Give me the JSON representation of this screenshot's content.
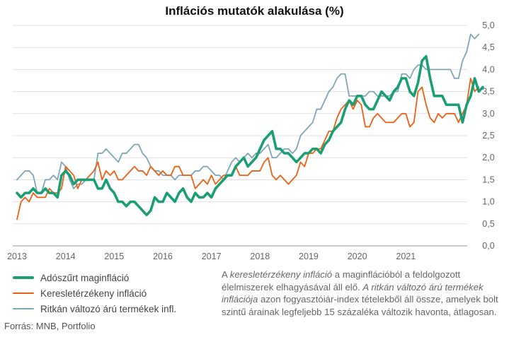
{
  "chart_data": {
    "type": "line",
    "title": "Inflációs mutatók alakulása (%)",
    "xlabel": "",
    "ylabel": "",
    "ylim": [
      0,
      5
    ],
    "y_ticks": [
      "0,0",
      "0,5",
      "1,0",
      "1,5",
      "2,0",
      "2,5",
      "3,0",
      "3,5",
      "4,0",
      "4,5",
      "5,0"
    ],
    "x_ticks": [
      "2013",
      "2014",
      "2015",
      "2016",
      "2017",
      "2018",
      "2019",
      "2020",
      "2021"
    ],
    "grid": "horizontal",
    "x_start_year": 2013,
    "series": [
      {
        "name": "Adószűrt maginfláció",
        "color": "#1a9e74",
        "width": 3.6,
        "values": [
          1.2,
          1.1,
          1.2,
          1.2,
          1.3,
          1.2,
          1.2,
          1.3,
          1.2,
          1.2,
          1.1,
          1.6,
          1.7,
          1.6,
          1.4,
          1.5,
          1.5,
          1.5,
          1.5,
          1.5,
          1.3,
          1.3,
          1.5,
          1.3,
          1.2,
          1.0,
          1.0,
          0.9,
          1.0,
          1.0,
          0.9,
          0.8,
          0.7,
          0.8,
          1.1,
          1.0,
          1.0,
          1.2,
          1.1,
          1.0,
          1.2,
          1.3,
          1.1,
          1.0,
          1.2,
          1.1,
          1.1,
          1.2,
          1.1,
          1.3,
          1.4,
          1.5,
          1.6,
          1.6,
          1.8,
          1.9,
          2.0,
          1.8,
          1.9,
          2.0,
          2.2,
          2.4,
          2.5,
          2.6,
          2.2,
          2.2,
          2.1,
          2.1,
          2.0,
          1.9,
          2.0,
          2.1,
          2.1,
          2.2,
          2.2,
          2.1,
          2.3,
          2.4,
          2.6,
          2.7,
          2.8,
          3.1,
          3.3,
          3.2,
          3.4,
          3.4,
          3.2,
          3.1,
          3.1,
          3.3,
          3.5,
          3.4,
          3.3,
          3.5,
          3.6,
          3.8,
          3.8,
          3.5,
          3.4,
          3.7,
          4.2,
          4.3,
          3.8,
          3.4,
          3.4,
          3.4,
          3.2,
          3.2,
          3.2,
          3.2,
          2.8,
          3.2,
          3.4,
          3.8,
          3.5,
          3.6
        ]
      },
      {
        "name": "Keresletérzékeny infláció",
        "color": "#ec5f15",
        "width": 1.8,
        "values": [
          0.6,
          1.0,
          1.1,
          1.0,
          1.2,
          1.1,
          1.1,
          1.1,
          1.3,
          1.2,
          1.2,
          1.3,
          1.8,
          1.7,
          1.6,
          1.3,
          1.5,
          1.5,
          1.6,
          1.7,
          1.9,
          1.5,
          1.7,
          1.6,
          1.7,
          1.5,
          1.5,
          1.6,
          1.7,
          1.8,
          1.7,
          1.7,
          1.6,
          1.8,
          1.7,
          1.6,
          1.7,
          1.6,
          1.6,
          1.8,
          1.8,
          1.6,
          1.6,
          1.6,
          1.3,
          1.4,
          1.5,
          1.4,
          1.6,
          1.4,
          1.5,
          1.6,
          1.6,
          1.6,
          1.8,
          1.6,
          1.6,
          1.6,
          1.7,
          1.7,
          1.7,
          1.9,
          2.0,
          1.6,
          1.5,
          1.6,
          1.5,
          1.4,
          1.5,
          1.6,
          1.9,
          1.8,
          2.1,
          2.1,
          2.2,
          2.2,
          2.4,
          2.6,
          2.6,
          2.9,
          3.1,
          3.2,
          3.3,
          3.1,
          3.3,
          3.2,
          2.7,
          2.7,
          2.9,
          3.0,
          2.9,
          2.8,
          2.8,
          2.8,
          2.9,
          3.0,
          3.0,
          2.7,
          2.8,
          3.5,
          3.6,
          3.2,
          2.9,
          2.8,
          3.0,
          2.9,
          3.0,
          3.0,
          3.0,
          2.8,
          3.0,
          3.2,
          3.8,
          3.5,
          3.6
        ]
      },
      {
        "name": "Ritkán változó árú termékek infl.",
        "color": "#7ea6b6",
        "width": 1.8,
        "values": [
          1.5,
          1.6,
          1.7,
          1.7,
          1.6,
          1.2,
          1.2,
          1.5,
          1.5,
          1.6,
          1.5,
          1.9,
          1.8,
          1.5,
          1.3,
          1.4,
          1.4,
          1.5,
          1.5,
          1.5,
          2.1,
          2.1,
          2.2,
          2.1,
          2.0,
          1.9,
          2.1,
          2.1,
          2.2,
          2.3,
          2.3,
          2.1,
          2.0,
          1.8,
          1.7,
          1.7,
          1.6,
          1.6,
          1.6,
          1.5,
          1.6,
          1.6,
          1.6,
          1.6,
          1.7,
          1.7,
          1.8,
          1.8,
          1.7,
          1.6,
          1.6,
          1.5,
          1.7,
          1.9,
          2.0,
          1.9,
          2.0,
          2.1,
          2.0,
          2.1,
          2.1,
          2.2,
          2.3,
          2.0,
          2.0,
          2.1,
          2.2,
          2.2,
          2.1,
          2.2,
          2.5,
          2.6,
          2.7,
          2.8,
          3.1,
          3.1,
          3.3,
          3.5,
          3.6,
          3.8,
          3.9,
          3.9,
          3.4,
          3.4,
          3.4,
          3.4,
          3.4,
          3.5,
          3.5,
          3.4,
          3.4,
          3.4,
          3.4,
          3.5,
          3.5,
          3.9,
          3.9,
          3.8,
          4.0,
          4.1,
          4.1,
          4.0,
          4.0,
          4.0,
          4.0,
          4.0,
          4.0,
          4.0,
          3.8,
          3.8,
          4.2,
          4.4,
          4.8,
          4.7,
          4.8
        ]
      }
    ]
  },
  "legend": [
    "Adószűrt maginfláció",
    "Keresletérzékeny infláció",
    "Ritkán változó árú termékek infl."
  ],
  "source": "Forrás: MNB, Portfolio",
  "note": {
    "part1": "A ",
    "em1": "keresletérzékeny infláció",
    "part2": " a maginflációból a feldolgozott élelmiszerek elhagyásával áll elő. ",
    "em2": "A ritkán változó árú termékek inflációja",
    "part3": " azon fogyasztóiár-index tételekből áll össze, amelyek bolt szintű árainak legfeljebb 15 százaléka változik havonta, átlagosan."
  }
}
